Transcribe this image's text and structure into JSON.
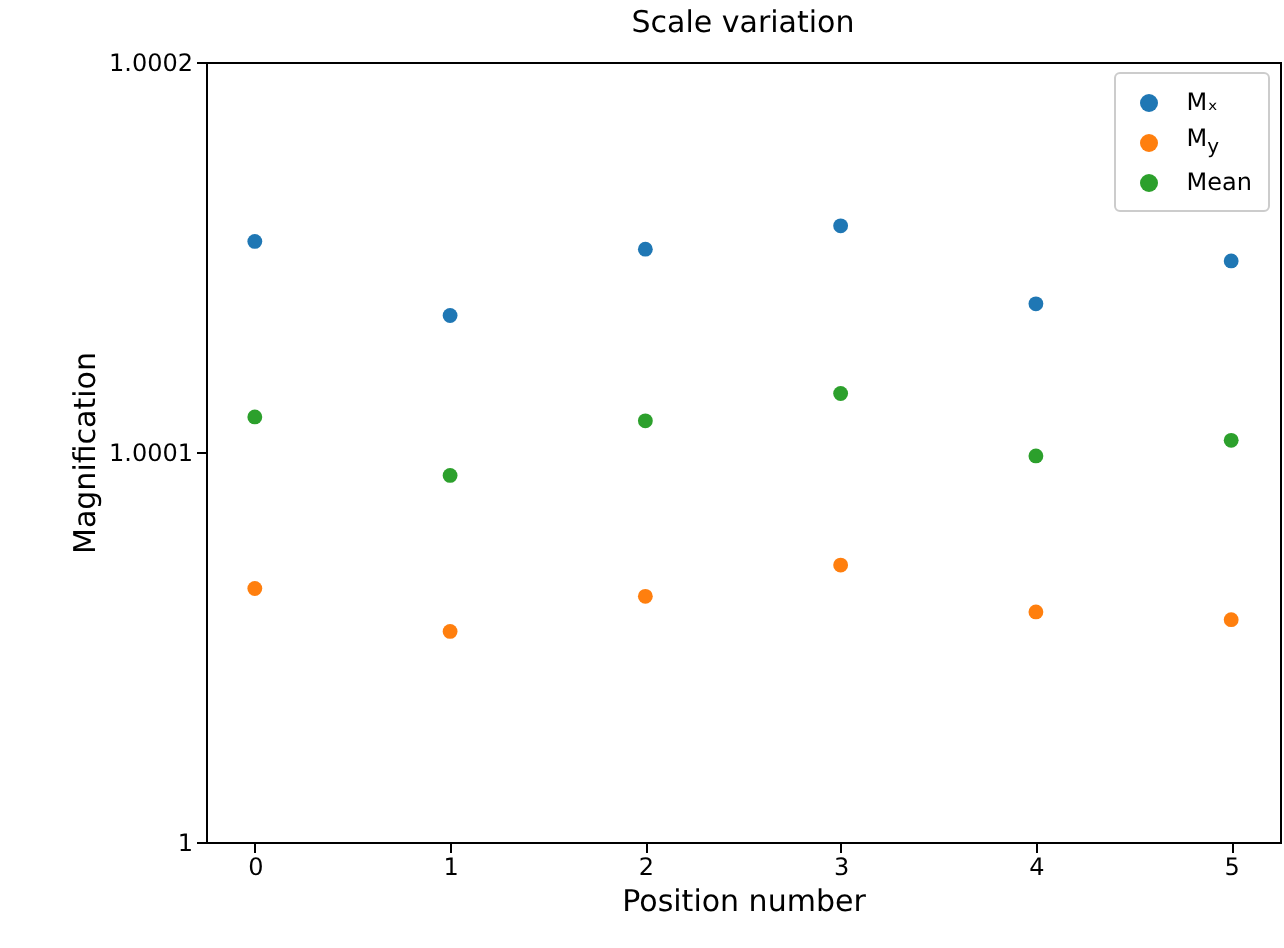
{
  "chart_data": {
    "type": "scatter",
    "title": "Scale variation",
    "xlabel": "Position number",
    "ylabel": "Magnification",
    "x": [
      0,
      1,
      2,
      3,
      4,
      5
    ],
    "series": [
      {
        "name": "Mₓ",
        "color": "#1f77b4",
        "values": [
          1.000154,
          1.000135,
          1.000152,
          1.000158,
          1.000138,
          1.000149
        ]
      },
      {
        "name": "M$_{y}$",
        "color": "#ff7f0e",
        "values": [
          1.000065,
          1.000054,
          1.000063,
          1.000071,
          1.000059,
          1.000057
        ]
      },
      {
        "name": "Mean",
        "color": "#2ca02c",
        "values": [
          1.000109,
          1.000094,
          1.000108,
          1.000115,
          1.000099,
          1.000103
        ]
      }
    ],
    "xlim": [
      -0.25,
      5.25
    ],
    "xticks": [
      0,
      1,
      2,
      3,
      4,
      5
    ],
    "ylim": [
      1,
      1.0002
    ],
    "yticks": [
      1,
      1.0001,
      1.0002
    ],
    "legend": "top right",
    "marker": "circle",
    "grid": false
  }
}
